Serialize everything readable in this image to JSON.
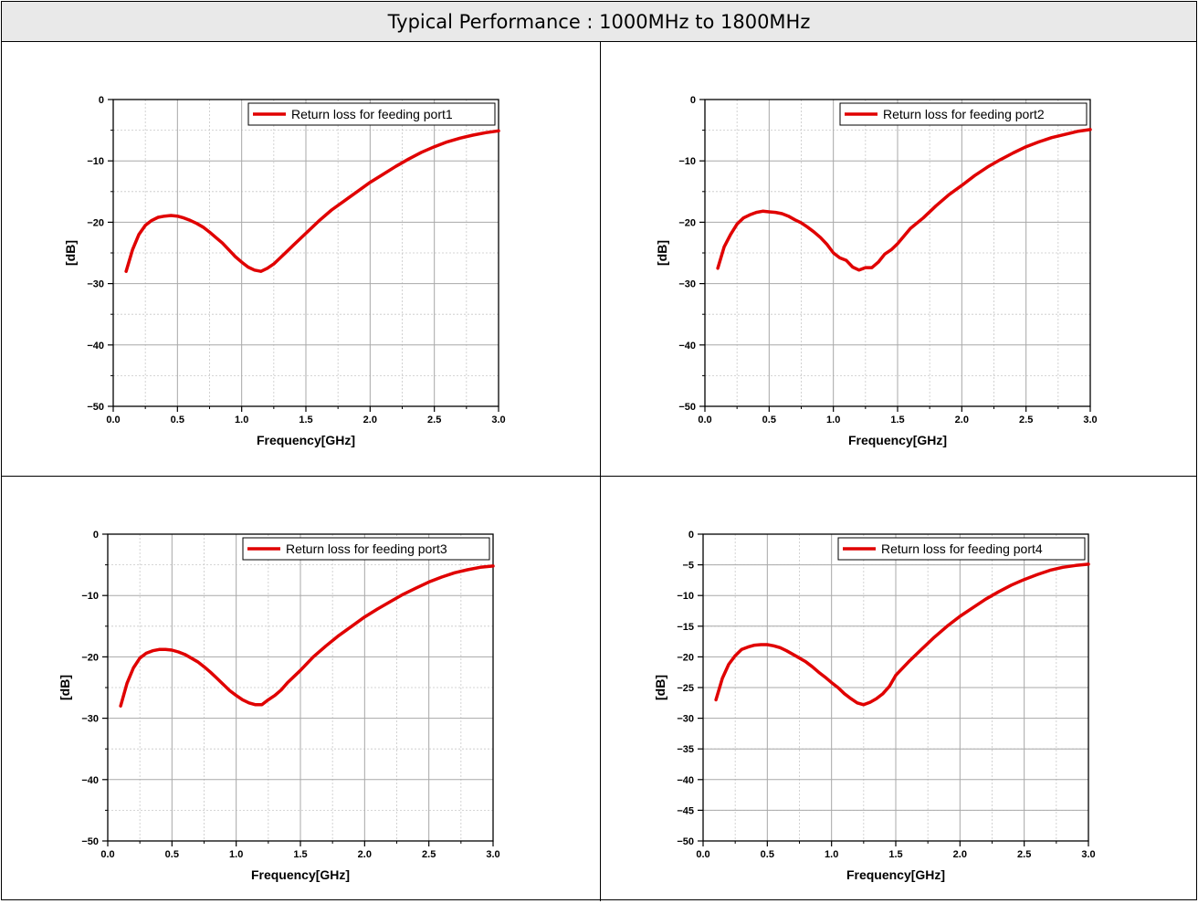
{
  "header": {
    "title": "Typical Performance : 1000MHz to 1800MHz"
  },
  "chart_data": [
    {
      "type": "line",
      "xlabel": "Frequency[GHz]",
      "ylabel": "[dB]",
      "xlim": [
        0,
        3
      ],
      "ylim": [
        -50,
        0
      ],
      "x_ticks": [
        0,
        0.5,
        1,
        1.5,
        2,
        2.5,
        3
      ],
      "y_ticks": [
        0,
        -10,
        -20,
        -30,
        -40,
        -50
      ],
      "x_tick_labels": [
        "0.0",
        "0.5",
        "1.0",
        "1.5",
        "2.0",
        "2.5",
        "3.0"
      ],
      "y_tick_labels": [
        "0",
        "−10",
        "−20",
        "−30",
        "−40",
        "−50"
      ],
      "grid": true,
      "legend_position": "top-right",
      "color": "#e00000",
      "series": [
        {
          "name": "Return loss for feeding port1",
          "x": [
            0.1,
            0.15,
            0.2,
            0.25,
            0.3,
            0.35,
            0.4,
            0.45,
            0.5,
            0.55,
            0.6,
            0.65,
            0.7,
            0.75,
            0.8,
            0.85,
            0.9,
            0.95,
            1.0,
            1.05,
            1.1,
            1.15,
            1.2,
            1.25,
            1.3,
            1.35,
            1.4,
            1.5,
            1.6,
            1.7,
            1.8,
            1.9,
            2.0,
            2.1,
            2.2,
            2.3,
            2.4,
            2.5,
            2.6,
            2.7,
            2.8,
            2.9,
            3.0
          ],
          "y": [
            -28.0,
            -24.5,
            -22.0,
            -20.5,
            -19.7,
            -19.2,
            -19.0,
            -18.9,
            -19.0,
            -19.3,
            -19.7,
            -20.2,
            -20.8,
            -21.6,
            -22.5,
            -23.4,
            -24.5,
            -25.6,
            -26.5,
            -27.3,
            -27.8,
            -28.0,
            -27.5,
            -26.8,
            -25.8,
            -24.8,
            -23.8,
            -21.8,
            -19.8,
            -18.0,
            -16.5,
            -15.0,
            -13.5,
            -12.2,
            -10.9,
            -9.7,
            -8.6,
            -7.7,
            -6.9,
            -6.3,
            -5.8,
            -5.4,
            -5.1
          ]
        }
      ]
    },
    {
      "type": "line",
      "xlabel": "Frequency[GHz]",
      "ylabel": "[dB]",
      "xlim": [
        0,
        3
      ],
      "ylim": [
        -50,
        0
      ],
      "x_ticks": [
        0,
        0.5,
        1,
        1.5,
        2,
        2.5,
        3
      ],
      "y_ticks": [
        0,
        -10,
        -20,
        -30,
        -40,
        -50
      ],
      "x_tick_labels": [
        "0.0",
        "0.5",
        "1.0",
        "1.5",
        "2.0",
        "2.5",
        "3.0"
      ],
      "y_tick_labels": [
        "0",
        "−10",
        "−20",
        "−30",
        "−40",
        "−50"
      ],
      "grid": true,
      "legend_position": "top-right",
      "color": "#e00000",
      "series": [
        {
          "name": "Return loss for feeding port2",
          "x": [
            0.1,
            0.15,
            0.2,
            0.25,
            0.3,
            0.35,
            0.4,
            0.45,
            0.5,
            0.55,
            0.6,
            0.65,
            0.7,
            0.75,
            0.8,
            0.85,
            0.9,
            0.95,
            1.0,
            1.05,
            1.1,
            1.15,
            1.2,
            1.25,
            1.3,
            1.35,
            1.4,
            1.45,
            1.5,
            1.6,
            1.7,
            1.8,
            1.9,
            2.0,
            2.1,
            2.2,
            2.3,
            2.4,
            2.5,
            2.6,
            2.7,
            2.8,
            2.9,
            3.0
          ],
          "y": [
            -27.5,
            -24.0,
            -22.0,
            -20.3,
            -19.3,
            -18.8,
            -18.4,
            -18.2,
            -18.3,
            -18.4,
            -18.6,
            -19.0,
            -19.6,
            -20.1,
            -20.8,
            -21.6,
            -22.5,
            -23.6,
            -25.0,
            -25.8,
            -26.2,
            -27.3,
            -27.8,
            -27.4,
            -27.4,
            -26.5,
            -25.2,
            -24.5,
            -23.5,
            -21.0,
            -19.3,
            -17.3,
            -15.5,
            -14.0,
            -12.4,
            -11.0,
            -9.8,
            -8.7,
            -7.7,
            -6.9,
            -6.2,
            -5.7,
            -5.2,
            -4.9
          ]
        }
      ]
    },
    {
      "type": "line",
      "xlabel": "Frequency[GHz]",
      "ylabel": "[dB]",
      "xlim": [
        0,
        3
      ],
      "ylim": [
        -50,
        0
      ],
      "x_ticks": [
        0,
        0.5,
        1,
        1.5,
        2,
        2.5,
        3
      ],
      "y_ticks": [
        0,
        -10,
        -20,
        -30,
        -40,
        -50
      ],
      "x_tick_labels": [
        "0.0",
        "0.5",
        "1.0",
        "1.5",
        "2.0",
        "2.5",
        "3.0"
      ],
      "y_tick_labels": [
        "0",
        "−10",
        "−20",
        "−30",
        "−40",
        "−50"
      ],
      "grid": true,
      "legend_position": "top-right",
      "color": "#e00000",
      "series": [
        {
          "name": "Return loss for feeding port3",
          "x": [
            0.1,
            0.15,
            0.2,
            0.25,
            0.3,
            0.35,
            0.4,
            0.45,
            0.5,
            0.55,
            0.6,
            0.65,
            0.7,
            0.75,
            0.8,
            0.85,
            0.9,
            0.95,
            1.0,
            1.05,
            1.1,
            1.15,
            1.2,
            1.25,
            1.3,
            1.35,
            1.4,
            1.5,
            1.6,
            1.7,
            1.8,
            1.9,
            2.0,
            2.1,
            2.2,
            2.3,
            2.4,
            2.5,
            2.6,
            2.7,
            2.8,
            2.9,
            3.0
          ],
          "y": [
            -28.0,
            -24.3,
            -21.8,
            -20.2,
            -19.4,
            -19.0,
            -18.8,
            -18.8,
            -18.9,
            -19.2,
            -19.6,
            -20.2,
            -20.8,
            -21.6,
            -22.5,
            -23.5,
            -24.5,
            -25.5,
            -26.3,
            -27.0,
            -27.5,
            -27.8,
            -27.8,
            -27.0,
            -26.3,
            -25.4,
            -24.2,
            -22.2,
            -20.0,
            -18.2,
            -16.5,
            -15.0,
            -13.5,
            -12.2,
            -11.0,
            -9.8,
            -8.8,
            -7.8,
            -7.0,
            -6.3,
            -5.8,
            -5.4,
            -5.2
          ]
        }
      ]
    },
    {
      "type": "line",
      "xlabel": "Frequency[GHz]",
      "ylabel": "[dB]",
      "xlim": [
        0,
        3
      ],
      "ylim": [
        -50,
        0
      ],
      "x_ticks": [
        0,
        0.5,
        1,
        1.5,
        2,
        2.5,
        3
      ],
      "y_ticks": [
        0,
        -5,
        -10,
        -15,
        -20,
        -25,
        -30,
        -35,
        -40,
        -45,
        -50
      ],
      "x_tick_labels": [
        "0.0",
        "0.5",
        "1.0",
        "1.5",
        "2.0",
        "2.5",
        "3.0"
      ],
      "y_tick_labels": [
        "0",
        "−5",
        "−10",
        "−15",
        "−20",
        "−25",
        "−30",
        "−35",
        "−40",
        "−45",
        "−50"
      ],
      "grid": true,
      "legend_position": "top-right",
      "color": "#e00000",
      "series": [
        {
          "name": "Return loss for feeding port4",
          "x": [
            0.1,
            0.15,
            0.2,
            0.25,
            0.3,
            0.35,
            0.4,
            0.45,
            0.5,
            0.55,
            0.6,
            0.65,
            0.7,
            0.75,
            0.8,
            0.85,
            0.9,
            0.95,
            1.0,
            1.05,
            1.1,
            1.15,
            1.2,
            1.25,
            1.3,
            1.35,
            1.4,
            1.45,
            1.5,
            1.6,
            1.7,
            1.8,
            1.9,
            2.0,
            2.1,
            2.2,
            2.3,
            2.4,
            2.5,
            2.6,
            2.7,
            2.8,
            2.9,
            3.0
          ],
          "y": [
            -27.0,
            -23.5,
            -21.2,
            -19.8,
            -18.8,
            -18.4,
            -18.1,
            -18.0,
            -18.0,
            -18.2,
            -18.5,
            -19.0,
            -19.6,
            -20.2,
            -20.8,
            -21.6,
            -22.5,
            -23.3,
            -24.2,
            -25.0,
            -26.0,
            -26.8,
            -27.5,
            -27.8,
            -27.4,
            -26.8,
            -26.0,
            -24.8,
            -23.0,
            -20.8,
            -18.8,
            -16.8,
            -15.0,
            -13.4,
            -12.0,
            -10.6,
            -9.4,
            -8.3,
            -7.4,
            -6.6,
            -5.9,
            -5.4,
            -5.1,
            -4.9
          ]
        }
      ]
    }
  ]
}
